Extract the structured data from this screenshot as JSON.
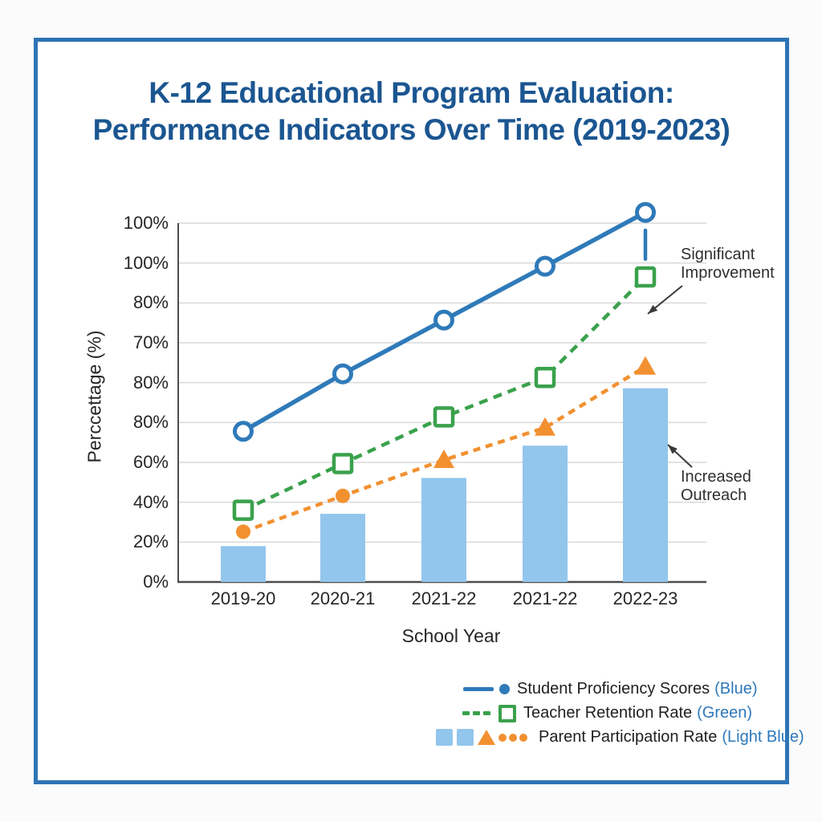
{
  "page": {
    "frame_color": "#2e74b5",
    "background": "#ffffff"
  },
  "title": {
    "line1": "K-12 Educational Program Evaluation:",
    "line2": "Performance Indicators Over Time (2019-2023)",
    "color": "#1b5691"
  },
  "chart_data": {
    "type": "combo: line series over bar series",
    "categories": [
      "2019-20",
      "2020-21",
      "2021-22",
      "2021-22",
      "2022-23"
    ],
    "x_axis": {
      "label": "School Year"
    },
    "y_axis": {
      "label": "Perccettage (%)",
      "tick_labels_top_to_bottom": [
        "100%",
        "100%",
        "80%",
        "70%",
        "80%",
        "80%",
        "60%",
        "40%",
        "20%",
        "0%"
      ]
    },
    "grid": true,
    "legend_position": "bottom-right",
    "series": [
      {
        "name": "Student Proficiency Scores",
        "type": "line",
        "style": "solid",
        "marker": "open-circle",
        "color": "#2f7ab9",
        "values": [
          42,
          58,
          73,
          88,
          103
        ]
      },
      {
        "name": "Teacher Retention Rate",
        "type": "line",
        "style": "dashed",
        "marker": "open-square",
        "color": "#3aa14b",
        "values": [
          20,
          33,
          46,
          57,
          85
        ]
      },
      {
        "name": "Parent Participation Rate",
        "type": "line",
        "style": "dashed",
        "marker_by_point": [
          "circle",
          "circle",
          "triangle",
          "triangle",
          "triangle"
        ],
        "color": "#f29030",
        "values": [
          14,
          24,
          34,
          43,
          60
        ]
      },
      {
        "name": "Parent Participation Rate (bars)",
        "type": "bar",
        "color": "#93c6ec",
        "values": [
          10,
          19,
          29,
          38,
          54
        ]
      }
    ],
    "error_tick": {
      "category_index": 4,
      "from": 90,
      "to": 98,
      "color": "#2f7ab9"
    },
    "annotations": [
      {
        "text": "Significant Improvement"
      },
      {
        "text": "Increased Outreach"
      }
    ],
    "colors": {
      "grid": "#d9d9d9",
      "axis": "#4d4d4d",
      "tick_text": "#262626",
      "annotation_text": "#2f2f2f",
      "arrow": "#3a3a3a"
    }
  },
  "legend": {
    "suffix_color": "#2e78bb",
    "items": [
      {
        "label": "Student Proficiency Scores",
        "suffix": "(Blue)",
        "glyphs": [
          {
            "shape": "line",
            "color": "#2f7ab9"
          },
          {
            "shape": "dot",
            "color": "#2f7ab9"
          }
        ]
      },
      {
        "label": "Teacher Retention Rate",
        "suffix": "(Green)",
        "glyphs": [
          {
            "shape": "dashes",
            "color": "#3aa14b"
          },
          {
            "shape": "square-open",
            "color": "#3aa14b"
          }
        ]
      },
      {
        "label": "Parent Participation Rate",
        "suffix": "(Light Blue)",
        "glyphs": [
          {
            "shape": "square-fill",
            "color": "#93c6ec"
          },
          {
            "shape": "square-fill",
            "color": "#93c6ec"
          },
          {
            "shape": "triangle",
            "color": "#f29030"
          },
          {
            "shape": "dots3",
            "color": "#f29030"
          }
        ]
      }
    ]
  }
}
